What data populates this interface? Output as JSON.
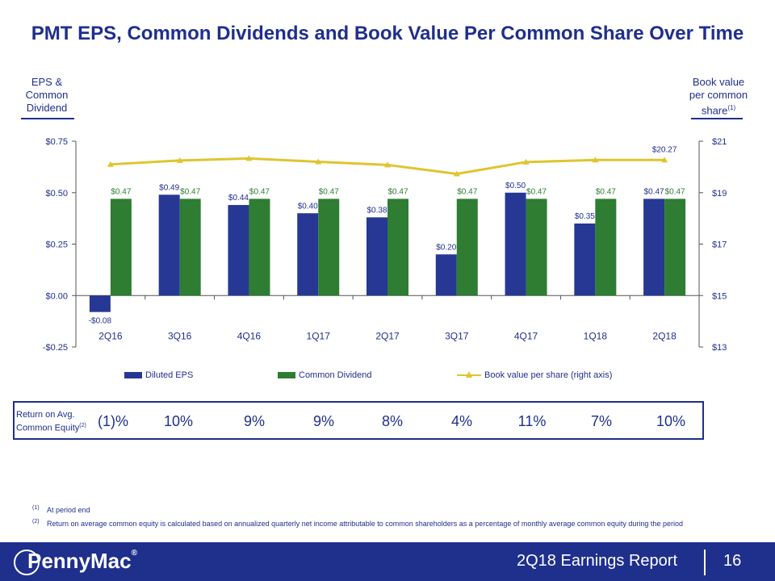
{
  "title": "PMT EPS, Common Dividends and Book Value Per Common Share Over Time",
  "left_axis_header": [
    "EPS &",
    "Common",
    "Dividend"
  ],
  "right_axis_header": {
    "lines": [
      "Book value",
      "per common",
      "share"
    ],
    "footnote_ref": "(1)"
  },
  "chart_data": {
    "type": "bar",
    "categories": [
      "2Q16",
      "3Q16",
      "4Q16",
      "1Q17",
      "2Q17",
      "3Q17",
      "4Q17",
      "1Q18",
      "2Q18"
    ],
    "series": [
      {
        "name": "Diluted EPS",
        "axis": "left",
        "color": "#263893",
        "values": [
          -0.08,
          0.49,
          0.44,
          0.4,
          0.38,
          0.2,
          0.5,
          0.35,
          0.47
        ],
        "labels": [
          "-$0.08",
          "$0.49",
          "$0.44",
          "$0.40",
          "$0.38",
          "$0.20",
          "$0.50",
          "$0.35",
          "$0.47"
        ]
      },
      {
        "name": "Common Dividend",
        "axis": "left",
        "color": "#2e7d32",
        "values": [
          0.47,
          0.47,
          0.47,
          0.47,
          0.47,
          0.47,
          0.47,
          0.47,
          0.47
        ],
        "labels": [
          "$0.47",
          "$0.47",
          "$0.47",
          "$0.47",
          "$0.47",
          "$0.47",
          "$0.47",
          "$0.47",
          "$0.47"
        ]
      },
      {
        "name": "Book value per share (right axis)",
        "axis": "right",
        "type": "line",
        "color": "#e0c52e",
        "values": [
          20.1,
          20.25,
          20.33,
          20.2,
          20.08,
          19.73,
          20.19,
          20.27,
          20.27
        ],
        "last_label": "$20.27"
      }
    ],
    "left_axis": {
      "ylim": [
        -0.25,
        0.75
      ],
      "ticks": [
        -0.25,
        0.0,
        0.25,
        0.5,
        0.75
      ],
      "tick_labels": [
        "-$0.25",
        "$0.00",
        "$0.25",
        "$0.50",
        "$0.75"
      ]
    },
    "right_axis": {
      "ylim": [
        13,
        21
      ],
      "ticks": [
        13,
        15,
        17,
        19,
        21
      ],
      "tick_labels": [
        "$13",
        "$15",
        "$17",
        "$19",
        "$21"
      ]
    }
  },
  "legend": {
    "eps": "Diluted EPS",
    "dividend": "Common Dividend",
    "book_value": "Book value per share (right axis)"
  },
  "roe": {
    "label_line1": "Return on Avg.",
    "label_line2": "Common Equity",
    "label_ref": "(2)",
    "values": [
      "(1)%",
      "10%",
      "9%",
      "9%",
      "8%",
      "4%",
      "11%",
      "7%",
      "10%"
    ]
  },
  "footnotes": [
    {
      "mark": "(1)",
      "text": "At period end"
    },
    {
      "mark": "(2)",
      "text": "Return on average common equity is calculated based on annualized quarterly net income attributable to common shareholders as a percentage of monthly average common equity during the period"
    }
  ],
  "footer": {
    "logo": "PennyMac",
    "report": "2Q18 Earnings Report",
    "page": "16"
  }
}
